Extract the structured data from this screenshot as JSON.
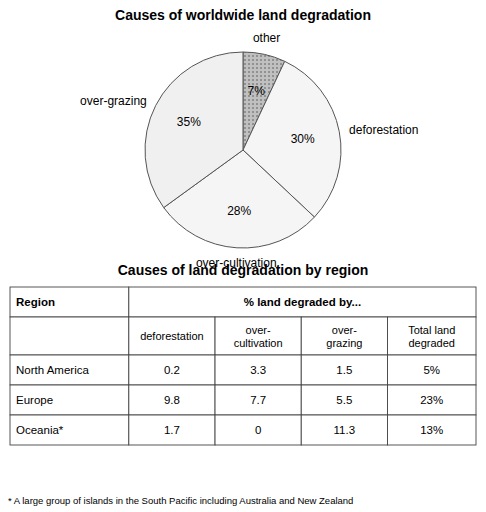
{
  "chart_data": [
    {
      "type": "pie",
      "title": "Causes of worldwide land degradation",
      "categories": [
        "other",
        "deforestation",
        "over-cultivation",
        "over-grazing"
      ],
      "values": [
        7,
        30,
        28,
        35
      ],
      "value_labels": [
        "7%",
        "30%",
        "28%",
        "35%"
      ],
      "data_labels": true,
      "colors": [
        "#c0c0c0",
        "#f5f5f5",
        "#f5f5f5",
        "#f0f0f0"
      ]
    },
    {
      "type": "table",
      "title": "Causes of land degradation by region",
      "header_rows": [
        [
          "Region",
          "% land degraded by..."
        ],
        [
          null,
          "deforestation",
          "over-\ncultivation",
          "over-\ngrazing",
          "Total land\ndegraded"
        ]
      ],
      "rows": [
        [
          "North America",
          0.2,
          3.3,
          1.5,
          {
            "value": 5,
            "label": "5%"
          }
        ],
        [
          "Europe",
          9.8,
          7.7,
          5.5,
          {
            "value": 23,
            "label": "23%"
          }
        ],
        [
          "Oceania*",
          1.7,
          0,
          11.3,
          {
            "value": 13,
            "label": "13%"
          }
        ]
      ],
      "footnote": "* A large group of islands in the South Pacific including Australia and New Zealand"
    }
  ]
}
